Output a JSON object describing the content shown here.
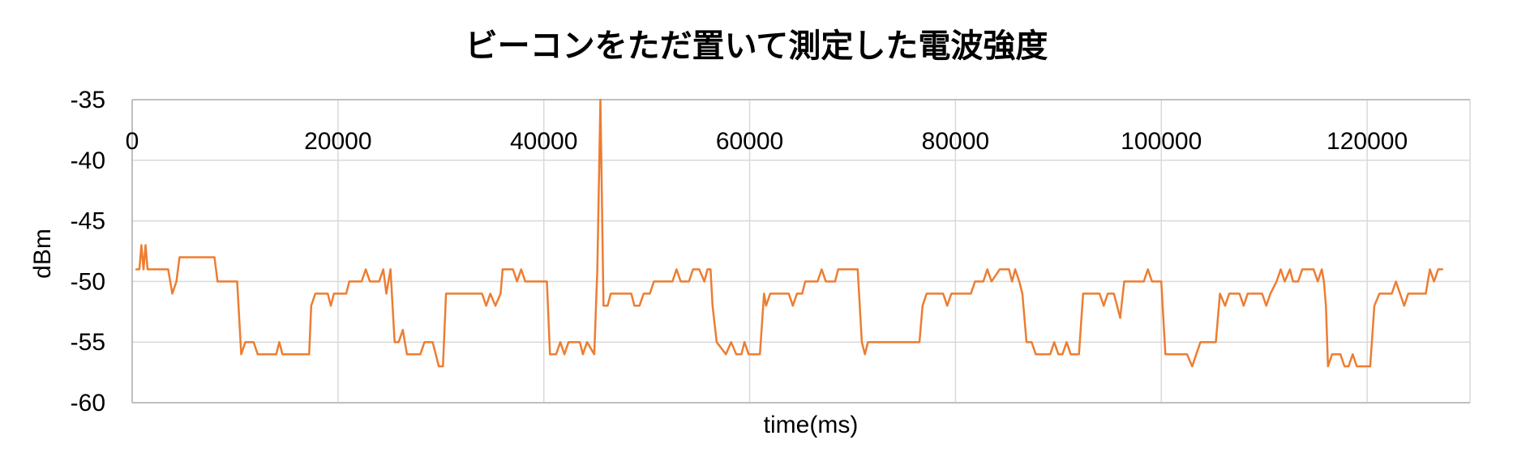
{
  "chart_data": {
    "type": "line",
    "title": "ビーコンをただ置いて測定した電波強度",
    "xlabel": "time(ms)",
    "ylabel": "dBm",
    "xlim": [
      0,
      130000
    ],
    "ylim": [
      -60,
      -35
    ],
    "x_ticks": [
      "0",
      "20000",
      "40000",
      "60000",
      "80000",
      "100000",
      "120000"
    ],
    "x_tick_values": [
      0,
      20000,
      40000,
      60000,
      80000,
      100000,
      120000
    ],
    "y_ticks": [
      "-35",
      "-40",
      "-45",
      "-50",
      "-55",
      "-60"
    ],
    "y_tick_values": [
      -35,
      -40,
      -45,
      -50,
      -55,
      -60
    ],
    "x_axis_position": "top",
    "grid": true,
    "legend": "none",
    "series": [
      {
        "color": "#ED7D31",
        "points": [
          [
            400,
            -49
          ],
          [
            700,
            -49
          ],
          [
            900,
            -47
          ],
          [
            1100,
            -49
          ],
          [
            1300,
            -47
          ],
          [
            1500,
            -49
          ],
          [
            2500,
            -49
          ],
          [
            3500,
            -49
          ],
          [
            3900,
            -51
          ],
          [
            4300,
            -50
          ],
          [
            4600,
            -48
          ],
          [
            5500,
            -48
          ],
          [
            7000,
            -48
          ],
          [
            8000,
            -48
          ],
          [
            8300,
            -50
          ],
          [
            10200,
            -50
          ],
          [
            10600,
            -56
          ],
          [
            11000,
            -55
          ],
          [
            11800,
            -55
          ],
          [
            12200,
            -56
          ],
          [
            14000,
            -56
          ],
          [
            14300,
            -55
          ],
          [
            14600,
            -56
          ],
          [
            16000,
            -56
          ],
          [
            17200,
            -56
          ],
          [
            17400,
            -52
          ],
          [
            17800,
            -51
          ],
          [
            19000,
            -51
          ],
          [
            19300,
            -52
          ],
          [
            19600,
            -51
          ],
          [
            20800,
            -51
          ],
          [
            21100,
            -50
          ],
          [
            22300,
            -50
          ],
          [
            22700,
            -49
          ],
          [
            23100,
            -50
          ],
          [
            24000,
            -50
          ],
          [
            24400,
            -49
          ],
          [
            24700,
            -51
          ],
          [
            25100,
            -49
          ],
          [
            25500,
            -55
          ],
          [
            25900,
            -55
          ],
          [
            26300,
            -54
          ],
          [
            26700,
            -56
          ],
          [
            28000,
            -56
          ],
          [
            28400,
            -55
          ],
          [
            29200,
            -55
          ],
          [
            29500,
            -56
          ],
          [
            29800,
            -57
          ],
          [
            30200,
            -57
          ],
          [
            30500,
            -51
          ],
          [
            31000,
            -51
          ],
          [
            34000,
            -51
          ],
          [
            34400,
            -52
          ],
          [
            34800,
            -51
          ],
          [
            35300,
            -52
          ],
          [
            35800,
            -51
          ],
          [
            36000,
            -49
          ],
          [
            37000,
            -49
          ],
          [
            37400,
            -50
          ],
          [
            37800,
            -49
          ],
          [
            38200,
            -50
          ],
          [
            40000,
            -50
          ],
          [
            40300,
            -50
          ],
          [
            40600,
            -56
          ],
          [
            41200,
            -56
          ],
          [
            41600,
            -55
          ],
          [
            42000,
            -56
          ],
          [
            42400,
            -55
          ],
          [
            43500,
            -55
          ],
          [
            43800,
            -56
          ],
          [
            44200,
            -55
          ],
          [
            44900,
            -56
          ],
          [
            45200,
            -49
          ],
          [
            45500,
            -35
          ],
          [
            45800,
            -52
          ],
          [
            46200,
            -52
          ],
          [
            46500,
            -51
          ],
          [
            48500,
            -51
          ],
          [
            48800,
            -52
          ],
          [
            49300,
            -52
          ],
          [
            49700,
            -51
          ],
          [
            50300,
            -51
          ],
          [
            50700,
            -50
          ],
          [
            52500,
            -50
          ],
          [
            52900,
            -49
          ],
          [
            53300,
            -50
          ],
          [
            54100,
            -50
          ],
          [
            54500,
            -49
          ],
          [
            55100,
            -49
          ],
          [
            55600,
            -50
          ],
          [
            55900,
            -49
          ],
          [
            56200,
            -49
          ],
          [
            56400,
            -52
          ],
          [
            56800,
            -55
          ],
          [
            57700,
            -56
          ],
          [
            58200,
            -55
          ],
          [
            58700,
            -56
          ],
          [
            59200,
            -56
          ],
          [
            59500,
            -55
          ],
          [
            59900,
            -56
          ],
          [
            61000,
            -56
          ],
          [
            61400,
            -51
          ],
          [
            61600,
            -52
          ],
          [
            62000,
            -51
          ],
          [
            63800,
            -51
          ],
          [
            64200,
            -52
          ],
          [
            64600,
            -51
          ],
          [
            65100,
            -51
          ],
          [
            65400,
            -50
          ],
          [
            66600,
            -50
          ],
          [
            67000,
            -49
          ],
          [
            67400,
            -50
          ],
          [
            68300,
            -50
          ],
          [
            68600,
            -49
          ],
          [
            70500,
            -49
          ],
          [
            70900,
            -55
          ],
          [
            71200,
            -56
          ],
          [
            71500,
            -55
          ],
          [
            76000,
            -55
          ],
          [
            76500,
            -55
          ],
          [
            76800,
            -52
          ],
          [
            77200,
            -51
          ],
          [
            78800,
            -51
          ],
          [
            79200,
            -52
          ],
          [
            79600,
            -51
          ],
          [
            81500,
            -51
          ],
          [
            81900,
            -50
          ],
          [
            82700,
            -50
          ],
          [
            83100,
            -49
          ],
          [
            83500,
            -50
          ],
          [
            84300,
            -49
          ],
          [
            85200,
            -49
          ],
          [
            85500,
            -50
          ],
          [
            85800,
            -49
          ],
          [
            86200,
            -50
          ],
          [
            86500,
            -51
          ],
          [
            86900,
            -55
          ],
          [
            87400,
            -55
          ],
          [
            87800,
            -56
          ],
          [
            89200,
            -56
          ],
          [
            89600,
            -55
          ],
          [
            90000,
            -56
          ],
          [
            90400,
            -56
          ],
          [
            90800,
            -55
          ],
          [
            91200,
            -56
          ],
          [
            92000,
            -56
          ],
          [
            92400,
            -51
          ],
          [
            94000,
            -51
          ],
          [
            94400,
            -52
          ],
          [
            94800,
            -51
          ],
          [
            95400,
            -51
          ],
          [
            95700,
            -52
          ],
          [
            96000,
            -53
          ],
          [
            96400,
            -50
          ],
          [
            98300,
            -50
          ],
          [
            98700,
            -49
          ],
          [
            99100,
            -50
          ],
          [
            100000,
            -50
          ],
          [
            100400,
            -56
          ],
          [
            101000,
            -56
          ],
          [
            102500,
            -56
          ],
          [
            103000,
            -57
          ],
          [
            103400,
            -56
          ],
          [
            103800,
            -55
          ],
          [
            105300,
            -55
          ],
          [
            105700,
            -51
          ],
          [
            106200,
            -52
          ],
          [
            106600,
            -51
          ],
          [
            107600,
            -51
          ],
          [
            108000,
            -52
          ],
          [
            108400,
            -51
          ],
          [
            109800,
            -51
          ],
          [
            110200,
            -52
          ],
          [
            110600,
            -51
          ],
          [
            111200,
            -50
          ],
          [
            111600,
            -49
          ],
          [
            112000,
            -50
          ],
          [
            112500,
            -49
          ],
          [
            112800,
            -50
          ],
          [
            113300,
            -50
          ],
          [
            113700,
            -49
          ],
          [
            114800,
            -49
          ],
          [
            115200,
            -50
          ],
          [
            115600,
            -49
          ],
          [
            115800,
            -50
          ],
          [
            116000,
            -52
          ],
          [
            116200,
            -57
          ],
          [
            116600,
            -56
          ],
          [
            117400,
            -56
          ],
          [
            117800,
            -57
          ],
          [
            118200,
            -57
          ],
          [
            118600,
            -56
          ],
          [
            119000,
            -57
          ],
          [
            120000,
            -57
          ],
          [
            120300,
            -57
          ],
          [
            120700,
            -52
          ],
          [
            121200,
            -51
          ],
          [
            122400,
            -51
          ],
          [
            122800,
            -50
          ],
          [
            123200,
            -51
          ],
          [
            123600,
            -52
          ],
          [
            124000,
            -51
          ],
          [
            125700,
            -51
          ],
          [
            126100,
            -49
          ],
          [
            126500,
            -50
          ],
          [
            126900,
            -49
          ],
          [
            127300,
            -49
          ]
        ]
      }
    ]
  }
}
